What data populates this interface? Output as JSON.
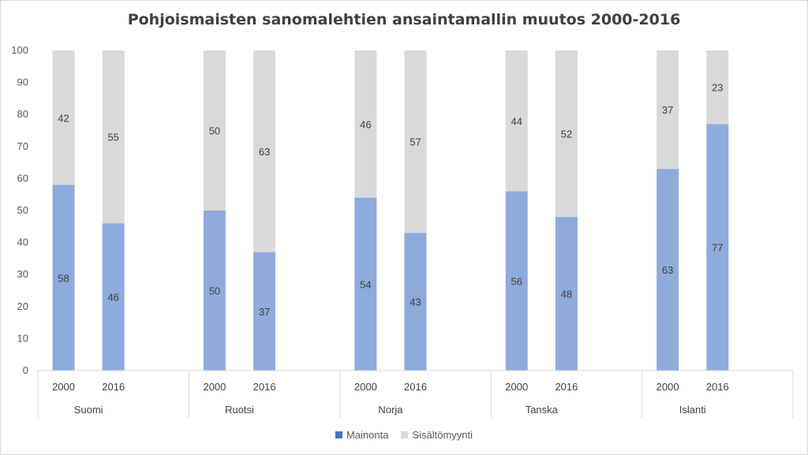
{
  "chart_data": {
    "type": "bar",
    "stacked": true,
    "title": "Pohjoismaisten sanomalehtien ansaintamallin muutos 2000-2016",
    "groups": [
      {
        "name": "Suomi",
        "years": [
          "2000",
          "2016"
        ]
      },
      {
        "name": "Ruotsi",
        "years": [
          "2000",
          "2016"
        ]
      },
      {
        "name": "Norja",
        "years": [
          "2000",
          "2016"
        ]
      },
      {
        "name": "Tanska",
        "years": [
          "2000",
          "2016"
        ]
      },
      {
        "name": "Islanti",
        "years": [
          "2000",
          "2016"
        ]
      }
    ],
    "series": [
      {
        "name": "Mainonta",
        "color": "#8faadc",
        "legend_color": "#4472c4",
        "values": [
          58,
          46,
          50,
          37,
          54,
          43,
          56,
          48,
          63,
          77
        ]
      },
      {
        "name": "Sisältömyynti",
        "color": "#d9d9d9",
        "legend_color": "#d9d9d9",
        "values": [
          42,
          55,
          50,
          63,
          46,
          57,
          44,
          52,
          37,
          23
        ]
      }
    ],
    "ylim": [
      0,
      100
    ],
    "yticks": [
      0,
      10,
      20,
      30,
      40,
      50,
      60,
      70,
      80,
      90,
      100
    ],
    "grid": false,
    "legend_position": "bottom"
  }
}
